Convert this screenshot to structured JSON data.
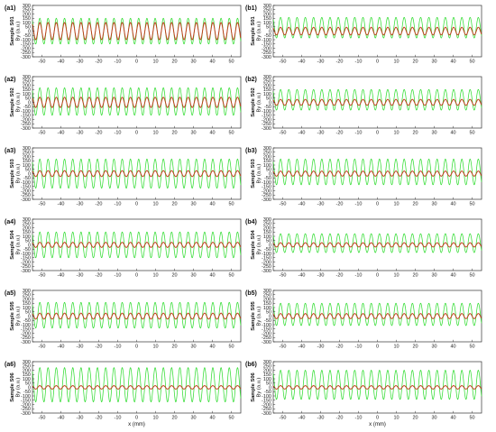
{
  "figure": {
    "x_axis_label": "x (mm)",
    "y_axis_label": "By (a.u.)",
    "colors": {
      "outer": "#33dd33",
      "inner": "#c1391a",
      "axis": "#333333"
    }
  },
  "chart_data": [
    {
      "panel": "(a1)",
      "sample_label": "Sample S01",
      "type": "line",
      "xlim": [
        -55,
        55
      ],
      "ylim": [
        -300,
        300
      ],
      "xticks": [
        -50,
        -40,
        -30,
        -20,
        -10,
        0,
        10,
        20,
        30,
        40,
        50
      ],
      "yticks": [
        300,
        250,
        200,
        150,
        100,
        50,
        0,
        -50,
        -100,
        -150,
        -200,
        -250,
        -300
      ],
      "grid": false,
      "series": [
        {
          "color": "#33dd33",
          "period_mm": 4.35,
          "amplitude": 150,
          "offset": 0
        },
        {
          "color": "#c1391a",
          "period_mm": 4.35,
          "amplitude": 100,
          "offset": 0
        }
      ]
    },
    {
      "panel": "(b1)",
      "sample_label": "Sample S01",
      "type": "line",
      "xlim": [
        -55,
        55
      ],
      "ylim": [
        -300,
        300
      ],
      "xticks": [
        -50,
        -40,
        -30,
        -20,
        -10,
        0,
        10,
        20,
        30,
        40,
        50
      ],
      "yticks": [
        300,
        250,
        200,
        150,
        100,
        50,
        0,
        -50,
        -100,
        -150,
        -200,
        -250,
        -300
      ],
      "grid": false,
      "series": [
        {
          "color": "#33dd33",
          "period_mm": 4.35,
          "amplitude": 120,
          "offset": 40
        },
        {
          "color": "#c1391a",
          "period_mm": 4.35,
          "amplitude": 45,
          "offset": 0
        }
      ]
    },
    {
      "panel": "(a2)",
      "sample_label": "Sample S02",
      "type": "line",
      "xlim": [
        -55,
        55
      ],
      "ylim": [
        -300,
        300
      ],
      "xticks": [
        -50,
        -40,
        -30,
        -20,
        -10,
        0,
        10,
        20,
        30,
        40,
        50
      ],
      "yticks": [
        300,
        250,
        200,
        150,
        100,
        50,
        0,
        -50,
        -100,
        -150,
        -200,
        -250,
        -300
      ],
      "grid": false,
      "series": [
        {
          "color": "#33dd33",
          "period_mm": 4.35,
          "amplitude": 160,
          "offset": 10
        },
        {
          "color": "#c1391a",
          "period_mm": 4.35,
          "amplitude": 60,
          "offset": 0
        }
      ]
    },
    {
      "panel": "(b2)",
      "sample_label": "Sample S02",
      "type": "line",
      "xlim": [
        -55,
        55
      ],
      "ylim": [
        -300,
        300
      ],
      "xticks": [
        -50,
        -40,
        -30,
        -20,
        -10,
        0,
        10,
        20,
        30,
        40,
        50
      ],
      "yticks": [
        300,
        250,
        200,
        150,
        100,
        50,
        0,
        -50,
        -100,
        -150,
        -200,
        -250,
        -300
      ],
      "grid": false,
      "series": [
        {
          "color": "#33dd33",
          "period_mm": 4.35,
          "amplitude": 120,
          "offset": 30
        },
        {
          "color": "#c1391a",
          "period_mm": 4.35,
          "amplitude": 35,
          "offset": 0
        }
      ]
    },
    {
      "panel": "(a3)",
      "sample_label": "Sample S03",
      "type": "line",
      "xlim": [
        -55,
        55
      ],
      "ylim": [
        -300,
        300
      ],
      "xticks": [
        -50,
        -40,
        -30,
        -20,
        -10,
        0,
        10,
        20,
        30,
        40,
        50
      ],
      "yticks": [
        300,
        250,
        200,
        150,
        100,
        50,
        0,
        -50,
        -100,
        -150,
        -200,
        -250,
        -300
      ],
      "grid": false,
      "series": [
        {
          "color": "#33dd33",
          "period_mm": 4.35,
          "amplitude": 170,
          "offset": 0
        },
        {
          "color": "#c1391a",
          "period_mm": 4.35,
          "amplitude": 35,
          "offset": 0
        }
      ]
    },
    {
      "panel": "(b3)",
      "sample_label": "Sample S03",
      "type": "line",
      "xlim": [
        -55,
        55
      ],
      "ylim": [
        -300,
        300
      ],
      "xticks": [
        -50,
        -40,
        -30,
        -20,
        -10,
        0,
        10,
        20,
        30,
        40,
        50
      ],
      "yticks": [
        300,
        250,
        200,
        150,
        100,
        50,
        0,
        -50,
        -100,
        -150,
        -200,
        -250,
        -300
      ],
      "grid": false,
      "series": [
        {
          "color": "#33dd33",
          "period_mm": 4.35,
          "amplitude": 150,
          "offset": 20
        },
        {
          "color": "#c1391a",
          "period_mm": 4.35,
          "amplitude": 30,
          "offset": 0
        }
      ]
    },
    {
      "panel": "(a4)",
      "sample_label": "Sample S04",
      "type": "line",
      "xlim": [
        -55,
        55
      ],
      "ylim": [
        -300,
        300
      ],
      "xticks": [
        -50,
        -40,
        -30,
        -20,
        -10,
        0,
        10,
        20,
        30,
        40,
        50
      ],
      "yticks": [
        300,
        250,
        200,
        150,
        100,
        50,
        0,
        -50,
        -100,
        -150,
        -200,
        -250,
        -300
      ],
      "grid": false,
      "series": [
        {
          "color": "#33dd33",
          "period_mm": 4.35,
          "amplitude": 150,
          "offset": 0
        },
        {
          "color": "#c1391a",
          "period_mm": 4.35,
          "amplitude": 30,
          "offset": 0
        }
      ]
    },
    {
      "panel": "(b4)",
      "sample_label": "Sample S04",
      "type": "line",
      "xlim": [
        -55,
        55
      ],
      "ylim": [
        -300,
        300
      ],
      "xticks": [
        -50,
        -40,
        -30,
        -20,
        -10,
        0,
        10,
        20,
        30,
        40,
        50
      ],
      "yticks": [
        300,
        250,
        200,
        150,
        100,
        50,
        0,
        -50,
        -100,
        -150,
        -200,
        -250,
        -300
      ],
      "grid": false,
      "series": [
        {
          "color": "#33dd33",
          "period_mm": 4.35,
          "amplitude": 110,
          "offset": 20
        },
        {
          "color": "#c1391a",
          "period_mm": 4.35,
          "amplitude": 25,
          "offset": 0
        }
      ]
    },
    {
      "panel": "(a5)",
      "sample_label": "Sample S05",
      "type": "line",
      "xlim": [
        -55,
        55
      ],
      "ylim": [
        -300,
        300
      ],
      "xticks": [
        -50,
        -40,
        -30,
        -20,
        -10,
        0,
        10,
        20,
        30,
        40,
        50
      ],
      "yticks": [
        300,
        250,
        200,
        150,
        100,
        50,
        0,
        -50,
        -100,
        -150,
        -200,
        -250,
        -300
      ],
      "grid": false,
      "series": [
        {
          "color": "#33dd33",
          "period_mm": 4.35,
          "amplitude": 150,
          "offset": 10
        },
        {
          "color": "#c1391a",
          "period_mm": 4.35,
          "amplitude": 35,
          "offset": 0
        }
      ]
    },
    {
      "panel": "(b5)",
      "sample_label": "Sample S05",
      "type": "line",
      "xlim": [
        -55,
        55
      ],
      "ylim": [
        -300,
        300
      ],
      "xticks": [
        -50,
        -40,
        -30,
        -20,
        -10,
        0,
        10,
        20,
        30,
        40,
        50
      ],
      "yticks": [
        300,
        250,
        200,
        150,
        100,
        50,
        0,
        -50,
        -100,
        -150,
        -200,
        -250,
        -300
      ],
      "grid": false,
      "series": [
        {
          "color": "#33dd33",
          "period_mm": 4.35,
          "amplitude": 130,
          "offset": 20
        },
        {
          "color": "#c1391a",
          "period_mm": 4.35,
          "amplitude": 30,
          "offset": 0
        }
      ]
    },
    {
      "panel": "(a6)",
      "sample_label": "Sample S06",
      "type": "line",
      "xlim": [
        -55,
        55
      ],
      "ylim": [
        -300,
        300
      ],
      "xticks": [
        -50,
        -40,
        -30,
        -20,
        -10,
        0,
        10,
        20,
        30,
        40,
        50
      ],
      "yticks": [
        300,
        250,
        200,
        150,
        100,
        50,
        0,
        -50,
        -100,
        -150,
        -200,
        -250,
        -300
      ],
      "grid": false,
      "series": [
        {
          "color": "#33dd33",
          "period_mm": 4.35,
          "amplitude": 200,
          "offset": 30
        },
        {
          "color": "#c1391a",
          "period_mm": 4.35,
          "amplitude": 20,
          "offset": 0
        }
      ]
    },
    {
      "panel": "(b6)",
      "sample_label": "Sample S06",
      "type": "line",
      "xlim": [
        -55,
        55
      ],
      "ylim": [
        -300,
        300
      ],
      "xticks": [
        -50,
        -40,
        -30,
        -20,
        -10,
        0,
        10,
        20,
        30,
        40,
        50
      ],
      "yticks": [
        300,
        250,
        200,
        150,
        100,
        50,
        0,
        -50,
        -100,
        -150,
        -200,
        -250,
        -300
      ],
      "grid": false,
      "series": [
        {
          "color": "#33dd33",
          "period_mm": 4.35,
          "amplitude": 170,
          "offset": 30
        },
        {
          "color": "#c1391a",
          "period_mm": 4.35,
          "amplitude": 20,
          "offset": 0
        }
      ]
    }
  ]
}
